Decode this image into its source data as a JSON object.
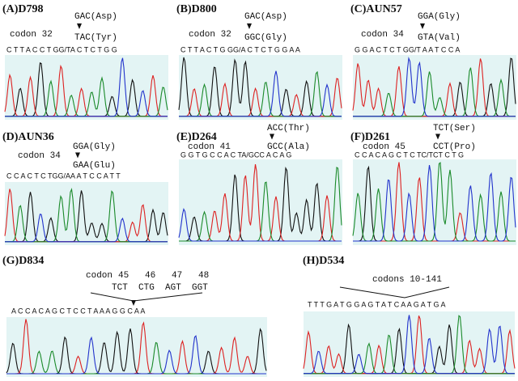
{
  "panels": [
    {
      "label": "(A)D798",
      "codon": "codon 32",
      "top": "GAC(Asp)",
      "bottom": "TAC(Tyr)",
      "sequence": "C T T A C C T GG/TA C T C T G G"
    },
    {
      "label": "(B)D800",
      "codon": "codon 32",
      "top": "GAC(Asp)",
      "bottom": "GGC(Gly)",
      "sequence": "C T T A C T G GG/A C T C T G G A A"
    },
    {
      "label": "(C)AUN57",
      "codon": "codon 34",
      "top": "GGA(Gly)",
      "bottom": "GTA(Val)",
      "sequence": "G G A C T C T GG/T A A T C C A"
    },
    {
      "label": "(D)AUN36",
      "codon": "codon 34",
      "top": "GGA(Gly)",
      "bottom": "GAA(Glu)",
      "sequence": "C C A C T C TGG/AA A T C C A T T"
    },
    {
      "label": "(E)D264",
      "codon": "codon 41",
      "top": "ACC(Thr)",
      "bottom": "GCC(Ala)",
      "sequence": "G G T G C C A C TA/GCC A C A G"
    },
    {
      "label": "(F)D261",
      "codon": "codon 45",
      "top": "TCT(Ser)",
      "bottom": "CCT(Pro)",
      "sequence": "C C A C A G C T C TC/TCT C T G"
    }
  ],
  "panel_g": {
    "label": "(G)D834",
    "codon": "codon",
    "numbers": [
      "45",
      "46",
      "47",
      "48"
    ],
    "codons": [
      "TCT",
      "CTG",
      "AGT",
      "GGT"
    ],
    "sequence": "A C C A C A G C T C C T A A A G G C A A"
  },
  "panel_h": {
    "label": "(H)D534",
    "codon": "codons 10-141",
    "sequence": "T T T G A T G G A G T A T C A A G A T G A"
  }
}
